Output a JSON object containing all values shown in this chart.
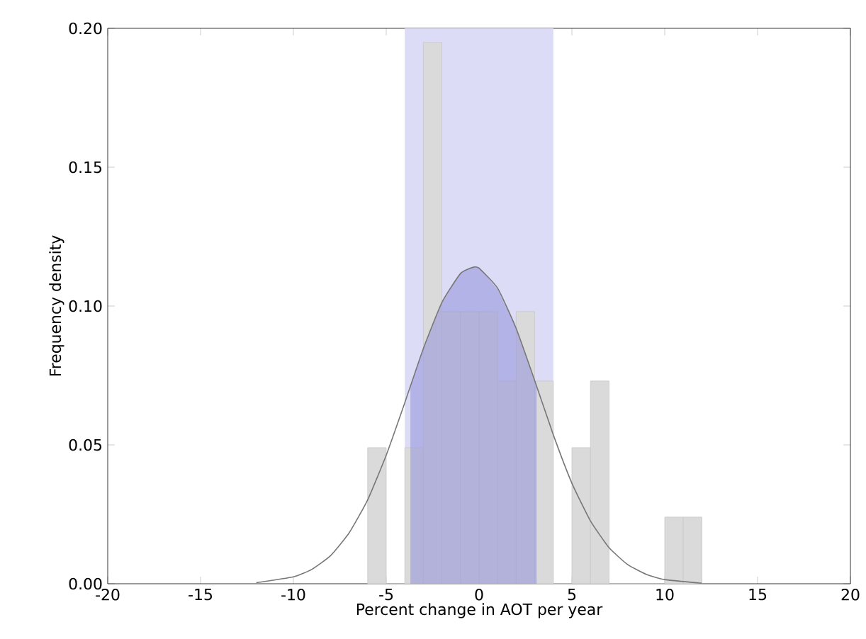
{
  "chart_data": {
    "type": "histogram",
    "xlabel": "Percent change in AOT per year",
    "ylabel": "Frequency density",
    "bins": [
      -6,
      -5,
      -4,
      -3,
      -2,
      -1,
      0,
      1,
      2,
      3,
      4,
      5,
      6,
      7,
      8,
      9,
      10,
      11,
      12
    ],
    "values": [
      0.049,
      0,
      0.049,
      0.195,
      0.098,
      0.098,
      0.098,
      0.073,
      0.098,
      0.073,
      0,
      0.049,
      0.073,
      0,
      0,
      0,
      0.024,
      0.024
    ],
    "color": "#dadada",
    "series": [
      {
        "type": "area",
        "color": "#9a97dc",
        "x": [
          -3.7,
          -3,
          -2,
          -1,
          -0.3,
          0,
          1,
          2,
          3.1
        ],
        "values": [
          0.071,
          0.085,
          0.101,
          0.112,
          0.114,
          0.114,
          0.106,
          0.092,
          0.071
        ]
      },
      {
        "type": "line",
        "color": "#777777",
        "x": [
          -12,
          -10,
          -9,
          -8,
          -7,
          -6,
          -5,
          -4,
          -3,
          -2,
          -1,
          -0.3,
          0,
          1,
          2,
          3,
          4,
          5,
          6,
          7,
          8,
          9,
          10,
          12
        ],
        "values": [
          0.0004,
          0.0025,
          0.0052,
          0.0101,
          0.0183,
          0.0302,
          0.0463,
          0.0652,
          0.0847,
          0.1013,
          0.1117,
          0.114,
          0.1136,
          0.1064,
          0.0919,
          0.0731,
          0.0536,
          0.0362,
          0.0226,
          0.013,
          0.0069,
          0.0034,
          0.0015,
          0.0002
        ]
      }
    ],
    "bands": [
      {
        "axis": "x",
        "from": -4,
        "to": 4,
        "color": "#dcdcf7"
      }
    ],
    "xlim": [
      -20,
      20
    ],
    "ylim": [
      0,
      0.2
    ],
    "xticks": [
      -20,
      -15,
      -10,
      -5,
      0,
      5,
      10,
      15,
      20
    ],
    "yticks": [
      {
        "value": 0,
        "label": "0.00"
      },
      {
        "value": 0.05,
        "label": "0.05"
      },
      {
        "value": 0.1,
        "label": "0.10"
      },
      {
        "value": 0.15,
        "label": "0.15"
      },
      {
        "value": 0.2,
        "label": "0.20"
      }
    ]
  }
}
